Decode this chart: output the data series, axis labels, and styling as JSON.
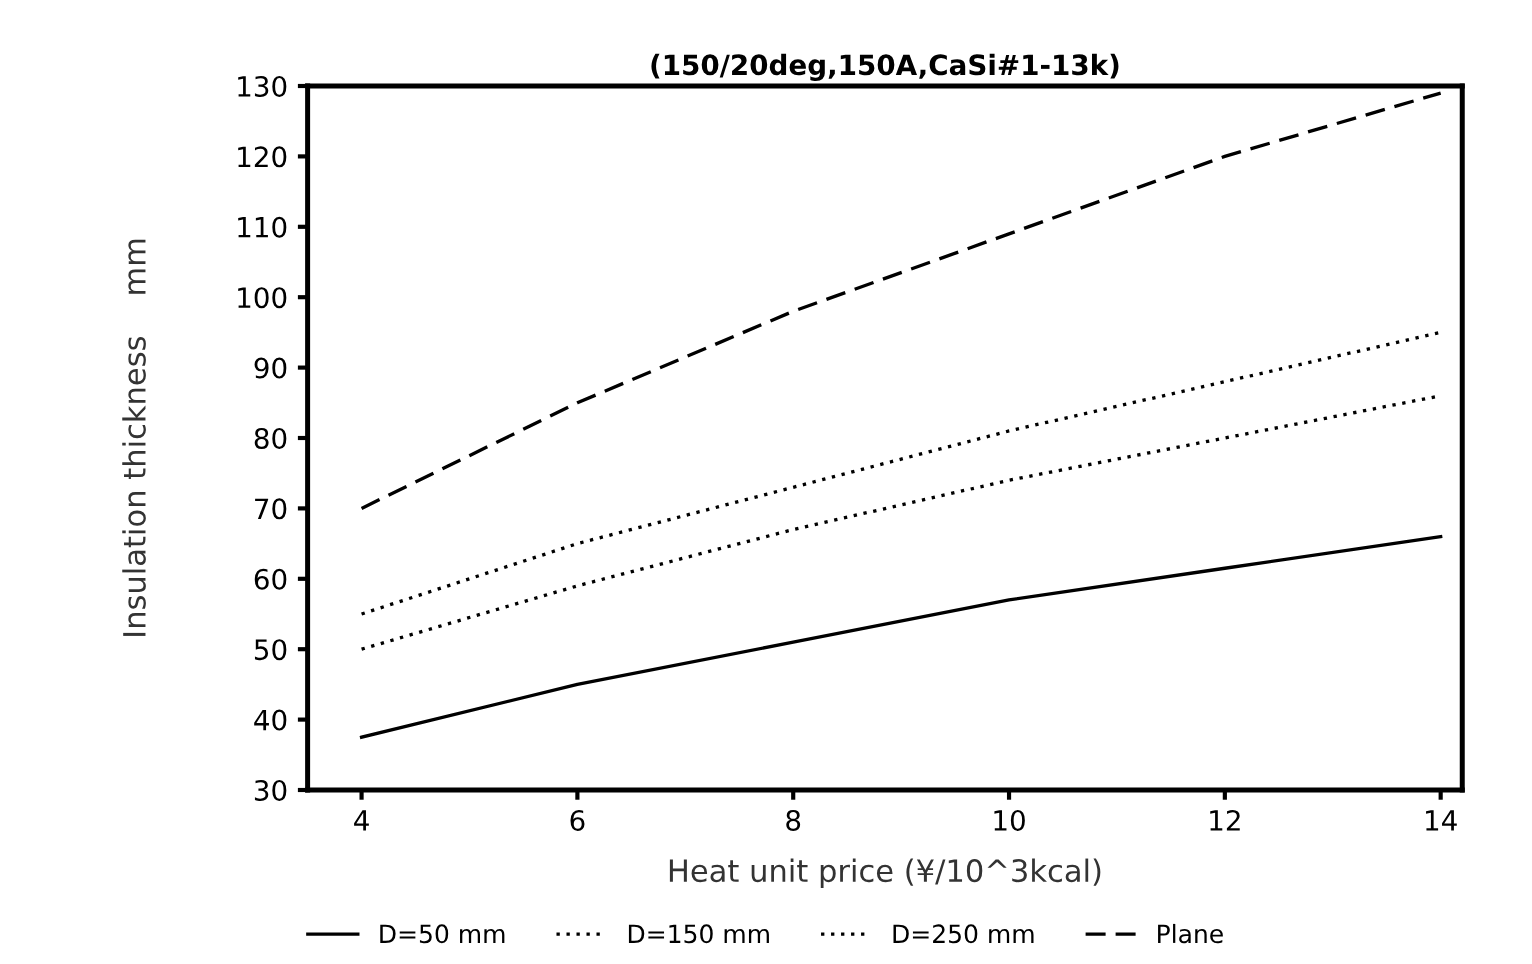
{
  "chart_data": {
    "type": "line",
    "title": "(150/20deg,150A,CaSi#1-13k)",
    "xlabel": "Heat unit price (¥/10^3kcal)",
    "ylabel": "Insulation thickness    mm",
    "x": [
      4,
      6,
      8,
      10,
      12,
      14
    ],
    "series": [
      {
        "name": "D=50 mm",
        "color": "#000000",
        "line_style": "solid",
        "values": [
          37.5,
          45,
          51,
          57,
          61.5,
          66
        ]
      },
      {
        "name": "D=150 mm",
        "color": "#000000",
        "line_style": "dotted",
        "values": [
          50,
          59,
          67,
          74,
          80,
          86
        ]
      },
      {
        "name": "D=250 mm",
        "color": "#000000",
        "line_style": "dotted",
        "values": [
          55,
          65,
          73,
          81,
          88,
          95
        ]
      },
      {
        "name": "Plane",
        "color": "#000000",
        "line_style": "dashed",
        "values": [
          70,
          85,
          98,
          109,
          120,
          129
        ]
      }
    ],
    "xlim": [
      3.5,
      14.2
    ],
    "xticks": [
      4,
      6,
      8,
      10,
      12,
      14
    ],
    "ylim": [
      30,
      130
    ],
    "yticks": [
      30,
      40,
      50,
      60,
      70,
      80,
      90,
      100,
      110,
      120,
      130
    ],
    "legend": "bottom",
    "grid": false,
    "marker": "none"
  }
}
